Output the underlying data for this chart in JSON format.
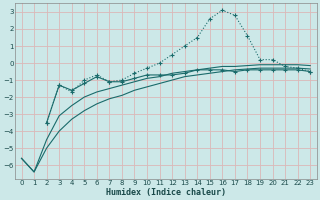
{
  "xlabel": "Humidex (Indice chaleur)",
  "background_color": "#cce8e8",
  "grid_color": "#dbb8b8",
  "line_color": "#1a6b6b",
  "xlim": [
    -0.5,
    23.5
  ],
  "ylim": [
    -6.8,
    3.5
  ],
  "yticks": [
    -6,
    -5,
    -4,
    -3,
    -2,
    -1,
    0,
    1,
    2,
    3
  ],
  "xticks": [
    0,
    1,
    2,
    3,
    4,
    5,
    6,
    7,
    8,
    9,
    10,
    11,
    12,
    13,
    14,
    15,
    16,
    17,
    18,
    19,
    20,
    21,
    22,
    23
  ],
  "line_peaked_x": [
    2,
    3,
    4,
    5,
    6,
    7,
    8,
    9,
    10,
    11,
    12,
    13,
    14,
    15,
    16,
    17,
    18,
    19,
    20,
    21,
    22,
    23
  ],
  "line_peaked_y": [
    -3.5,
    -1.3,
    -1.7,
    -1.0,
    -0.7,
    -1.1,
    -1.0,
    -0.6,
    -0.3,
    0.0,
    0.5,
    1.0,
    1.5,
    2.6,
    3.1,
    2.8,
    1.6,
    0.2,
    0.2,
    -0.2,
    -0.3,
    -0.5
  ],
  "line_flat_x": [
    2,
    3,
    4,
    5,
    6,
    7,
    8,
    9,
    10,
    11,
    12,
    13,
    14,
    15,
    16,
    17,
    18,
    19,
    20,
    21,
    22,
    23
  ],
  "line_flat_y": [
    -3.5,
    -1.3,
    -1.6,
    -1.2,
    -0.8,
    -1.1,
    -1.1,
    -0.9,
    -0.7,
    -0.7,
    -0.7,
    -0.6,
    -0.4,
    -0.4,
    -0.4,
    -0.5,
    -0.4,
    -0.4,
    -0.4,
    -0.4,
    -0.4,
    -0.5
  ],
  "line_straight1_x": [
    0,
    1,
    2,
    3,
    4,
    5,
    6,
    7,
    8,
    9,
    10,
    11,
    12,
    13,
    14,
    15,
    16,
    17,
    18,
    19,
    20,
    21,
    22,
    23
  ],
  "line_straight1_y": [
    -5.6,
    -6.4,
    -4.5,
    -3.1,
    -2.5,
    -2.0,
    -1.7,
    -1.5,
    -1.3,
    -1.1,
    -0.9,
    -0.8,
    -0.6,
    -0.5,
    -0.4,
    -0.3,
    -0.2,
    -0.2,
    -0.15,
    -0.1,
    -0.1,
    -0.1,
    -0.1,
    -0.15
  ],
  "line_straight2_x": [
    0,
    1,
    2,
    3,
    4,
    5,
    6,
    7,
    8,
    9,
    10,
    11,
    12,
    13,
    14,
    15,
    16,
    17,
    18,
    19,
    20,
    21,
    22,
    23
  ],
  "line_straight2_y": [
    -5.6,
    -6.4,
    -5.0,
    -4.0,
    -3.3,
    -2.8,
    -2.4,
    -2.1,
    -1.9,
    -1.6,
    -1.4,
    -1.2,
    -1.0,
    -0.8,
    -0.7,
    -0.6,
    -0.5,
    -0.4,
    -0.35,
    -0.3,
    -0.3,
    -0.3,
    -0.3,
    -0.35
  ]
}
